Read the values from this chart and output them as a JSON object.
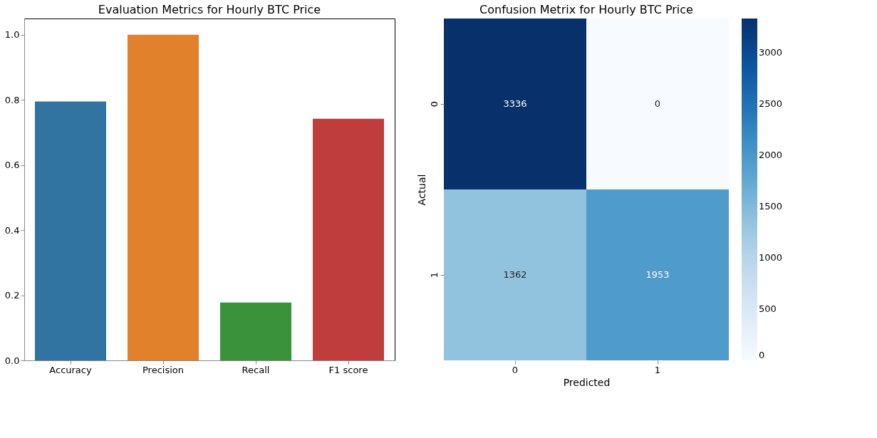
{
  "chart_data": [
    {
      "type": "bar",
      "title": "Evaluation Metrics for Hourly BTC Price",
      "categories": [
        "Accuracy",
        "Precision",
        "Recall",
        "F1 score"
      ],
      "values": [
        0.795,
        1.0,
        0.178,
        0.742
      ],
      "colors": [
        "#3274a1",
        "#e1812c",
        "#3a923a",
        "#c03d3e"
      ],
      "ylim": [
        0,
        1.05
      ],
      "yticks": [
        {
          "value": 0,
          "label": "0.0"
        },
        {
          "value": 0.2,
          "label": "0.2"
        },
        {
          "value": 0.4,
          "label": "0.4"
        },
        {
          "value": 0.6,
          "label": "0.6"
        },
        {
          "value": 0.8,
          "label": "0.8"
        },
        {
          "value": 1,
          "label": "1.0"
        }
      ],
      "grid": false
    },
    {
      "type": "heatmap",
      "title": "Confusion Metrix for Hourly BTC Price",
      "xlabel": "Predicted",
      "ylabel": "Actual",
      "categories": [
        "0",
        "1"
      ],
      "y_categories": [
        "0",
        "1"
      ],
      "cells": [
        [
          3336,
          0
        ],
        [
          1362,
          1953
        ]
      ],
      "data_labels": true,
      "clim": [
        0,
        3336
      ],
      "cticks": [
        0,
        500,
        1000,
        1500,
        2000,
        2500,
        3000
      ]
    }
  ]
}
